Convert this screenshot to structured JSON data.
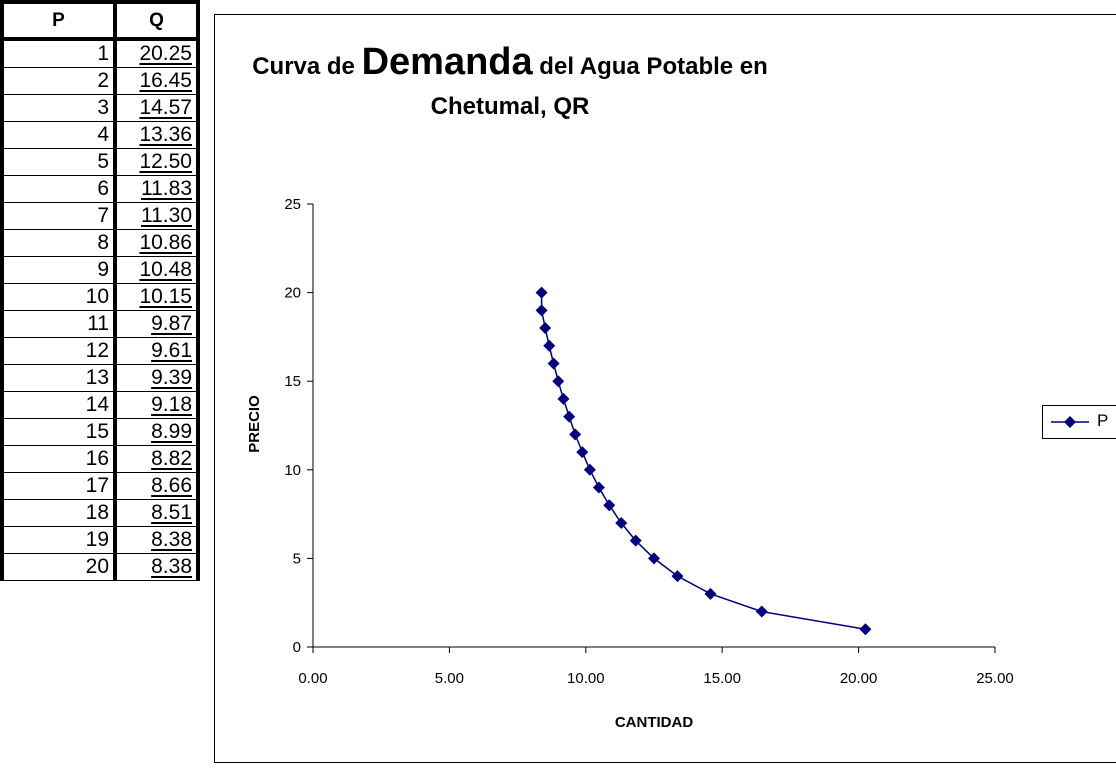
{
  "table": {
    "headers": [
      "P",
      "Q"
    ],
    "rows": [
      [
        "1",
        "20.25"
      ],
      [
        "2",
        "16.45"
      ],
      [
        "3",
        "14.57"
      ],
      [
        "4",
        "13.36"
      ],
      [
        "5",
        "12.50"
      ],
      [
        "6",
        "11.83"
      ],
      [
        "7",
        "11.30"
      ],
      [
        "8",
        "10.86"
      ],
      [
        "9",
        "10.48"
      ],
      [
        "10",
        "10.15"
      ],
      [
        "11",
        "9.87"
      ],
      [
        "12",
        "9.61"
      ],
      [
        "13",
        "9.39"
      ],
      [
        "14",
        "9.18"
      ],
      [
        "15",
        "8.99"
      ],
      [
        "16",
        "8.82"
      ],
      [
        "17",
        "8.66"
      ],
      [
        "18",
        "8.51"
      ],
      [
        "19",
        "8.38"
      ],
      [
        "20",
        "8.38"
      ]
    ]
  },
  "chart_data": {
    "type": "scatter",
    "title_part1": "Curva de ",
    "title_emphasis": "Demanda",
    "title_part2": " del Agua Potable en",
    "title_line2": "Chetumal, QR",
    "xlabel": "CANTIDAD",
    "ylabel": "PRECIO",
    "xlim": [
      0,
      25
    ],
    "ylim": [
      0,
      25
    ],
    "x_ticks": [
      "0.00",
      "5.00",
      "10.00",
      "15.00",
      "20.00",
      "25.00"
    ],
    "y_ticks": [
      "0",
      "5",
      "10",
      "15",
      "20",
      "25"
    ],
    "grid": false,
    "legend_position": "right",
    "series": [
      {
        "name": "P",
        "color": "#000080",
        "marker": "diamond",
        "x": [
          20.25,
          16.45,
          14.57,
          13.36,
          12.5,
          11.83,
          11.3,
          10.86,
          10.48,
          10.15,
          9.87,
          9.61,
          9.39,
          9.18,
          8.99,
          8.82,
          8.66,
          8.51,
          8.38,
          8.38
        ],
        "y": [
          1,
          2,
          3,
          4,
          5,
          6,
          7,
          8,
          9,
          10,
          11,
          12,
          13,
          14,
          15,
          16,
          17,
          18,
          19,
          20
        ]
      }
    ]
  }
}
